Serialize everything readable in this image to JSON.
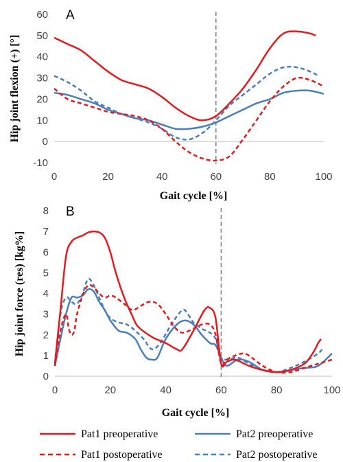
{
  "legend": [
    {
      "name": "Pat1 preoperative",
      "color": "#e8191d",
      "dash": "solid"
    },
    {
      "name": "Pat2 preoperative",
      "color": "#4a7ebb",
      "dash": "solid"
    },
    {
      "name": "Pat1 postoperative",
      "color": "#e8191d",
      "dash": "dashed"
    },
    {
      "name": "Pat2 postoperative",
      "color": "#4a7ebb",
      "dash": "dashed"
    }
  ],
  "chart_data": [
    {
      "type": "line",
      "panel_label": "A",
      "xlabel": "Gait cycle [%]",
      "ylabel": "Hip joint flexion  (+) [°]",
      "xlim": [
        0,
        100
      ],
      "ylim": [
        -10,
        60
      ],
      "xticks": [
        0,
        20,
        40,
        60,
        80,
        100
      ],
      "yticks": [
        -10,
        0,
        10,
        20,
        30,
        40,
        50,
        60
      ],
      "vline_x": 60,
      "grid": false,
      "series": [
        {
          "name": "Pat1 preoperative",
          "x": [
            0,
            5,
            10,
            15,
            20,
            25,
            30,
            35,
            40,
            45,
            50,
            55,
            60,
            65,
            70,
            75,
            80,
            85,
            90,
            95,
            97
          ],
          "y": [
            49,
            46,
            43,
            38,
            33,
            29,
            27,
            25,
            21,
            16,
            12,
            10,
            12,
            18,
            25,
            34,
            44,
            51,
            52,
            51,
            50
          ]
        },
        {
          "name": "Pat2 preoperative",
          "x": [
            0,
            5,
            10,
            15,
            20,
            25,
            30,
            35,
            40,
            45,
            50,
            55,
            60,
            65,
            70,
            75,
            80,
            85,
            90,
            95,
            100
          ],
          "y": [
            23,
            22,
            20,
            18,
            15,
            13,
            11,
            10,
            8,
            6,
            6,
            7,
            9,
            12,
            15,
            18,
            20,
            23,
            24,
            24,
            22.5
          ]
        },
        {
          "name": "Pat1 postoperative",
          "x": [
            0,
            5,
            10,
            15,
            20,
            25,
            30,
            35,
            40,
            45,
            50,
            55,
            60,
            65,
            70,
            75,
            80,
            85,
            90,
            95,
            100
          ],
          "y": [
            25,
            20,
            18,
            16,
            14,
            13,
            12,
            10,
            6,
            0,
            -5,
            -8,
            -9,
            -7,
            1,
            10,
            19,
            26,
            30,
            29,
            26
          ]
        },
        {
          "name": "Pat2 postoperative",
          "x": [
            0,
            5,
            10,
            15,
            20,
            25,
            30,
            35,
            40,
            45,
            50,
            55,
            60,
            65,
            70,
            75,
            80,
            85,
            90,
            95,
            98
          ],
          "y": [
            31,
            28,
            24,
            19,
            16,
            13,
            11,
            9,
            6,
            2,
            1,
            4,
            10,
            17,
            22,
            27,
            32,
            35,
            35,
            33,
            31
          ]
        }
      ]
    },
    {
      "type": "line",
      "panel_label": "B",
      "xlabel": "Gait cycle [%]",
      "ylabel": "Hip joint force (res) [kg%]",
      "xlim": [
        0,
        100
      ],
      "ylim": [
        0,
        8
      ],
      "xticks": [
        0,
        20,
        40,
        60,
        80,
        100
      ],
      "yticks": [
        0,
        1,
        2,
        3,
        4,
        5,
        6,
        7,
        8
      ],
      "vline_x": 60,
      "grid": false,
      "series": [
        {
          "name": "Pat1 preoperative",
          "x": [
            0,
            2,
            4,
            6,
            8,
            10,
            12,
            14,
            16,
            18,
            20,
            22,
            25,
            28,
            30,
            35,
            40,
            44,
            46,
            50,
            54,
            56,
            58,
            60,
            62,
            65,
            70,
            75,
            80,
            85,
            90,
            93,
            95,
            96
          ],
          "y": [
            0.6,
            3.2,
            5.8,
            6.5,
            6.7,
            6.8,
            6.95,
            7.0,
            6.95,
            6.7,
            6.0,
            5.0,
            3.8,
            2.9,
            2.4,
            1.9,
            1.6,
            1.3,
            1.3,
            2.2,
            3.2,
            3.3,
            2.8,
            0.6,
            0.7,
            0.8,
            0.5,
            0.3,
            0.2,
            0.3,
            0.6,
            1.1,
            1.6,
            1.8
          ]
        },
        {
          "name": "Pat2 preoperative",
          "x": [
            0,
            2,
            4,
            6,
            8,
            10,
            12,
            14,
            16,
            18,
            20,
            23,
            26,
            29,
            31,
            33,
            35,
            37,
            40,
            44,
            47,
            50,
            53,
            56,
            58,
            60,
            62,
            66,
            70,
            75,
            80,
            85,
            90,
            95,
            100
          ],
          "y": [
            0.5,
            1.8,
            3.0,
            3.8,
            3.8,
            3.9,
            4.2,
            4.1,
            3.6,
            3.2,
            2.7,
            2.2,
            2.1,
            1.8,
            1.3,
            0.9,
            0.8,
            0.9,
            1.8,
            2.5,
            2.7,
            2.5,
            2.0,
            1.6,
            1.5,
            0.9,
            0.5,
            0.8,
            0.7,
            0.3,
            0.2,
            0.3,
            0.4,
            0.5,
            1.1
          ]
        },
        {
          "name": "Pat1 postoperative",
          "x": [
            0,
            2,
            4,
            5,
            6,
            7,
            8,
            10,
            12,
            14,
            16,
            18,
            20,
            22,
            25,
            28,
            31,
            34,
            37,
            40,
            43,
            46,
            50,
            53,
            56,
            58,
            60,
            62,
            65,
            68,
            70,
            75,
            80,
            85,
            90,
            95,
            100
          ],
          "y": [
            0.5,
            2.2,
            3.0,
            2.3,
            2.0,
            2.2,
            3.0,
            3.9,
            4.4,
            4.3,
            4.0,
            3.8,
            3.9,
            3.8,
            3.5,
            3.2,
            3.4,
            3.6,
            3.5,
            3.0,
            2.4,
            2.1,
            2.3,
            2.5,
            2.5,
            2.0,
            0.6,
            0.8,
            1.0,
            1.1,
            1.0,
            0.5,
            0.2,
            0.2,
            0.4,
            0.6,
            0.8
          ]
        },
        {
          "name": "Pat2 postoperative",
          "x": [
            0,
            2,
            4,
            6,
            8,
            10,
            12,
            14,
            16,
            18,
            20,
            23,
            26,
            29,
            32,
            35,
            38,
            42,
            46,
            48,
            50,
            53,
            56,
            58,
            60,
            62,
            66,
            70,
            75,
            80,
            85,
            90,
            95,
            97
          ],
          "y": [
            0.6,
            3.0,
            3.8,
            3.6,
            3.5,
            4.0,
            4.7,
            4.4,
            3.8,
            3.2,
            2.8,
            2.6,
            2.5,
            2.2,
            1.8,
            1.3,
            1.6,
            2.5,
            3.2,
            3.0,
            2.6,
            2.3,
            2.1,
            1.8,
            0.9,
            0.8,
            0.9,
            0.6,
            0.3,
            0.2,
            0.4,
            0.7,
            1.1,
            1.4
          ]
        }
      ]
    }
  ]
}
